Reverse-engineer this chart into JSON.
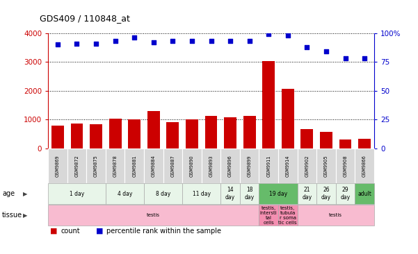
{
  "title": "GDS409 / 110848_at",
  "samples": [
    "GSM9869",
    "GSM9872",
    "GSM9875",
    "GSM9878",
    "GSM9881",
    "GSM9884",
    "GSM9887",
    "GSM9890",
    "GSM9893",
    "GSM9896",
    "GSM9899",
    "GSM9911",
    "GSM9914",
    "GSM9902",
    "GSM9905",
    "GSM9908",
    "GSM9866"
  ],
  "counts": [
    800,
    870,
    850,
    1040,
    1020,
    1300,
    920,
    1020,
    1130,
    1080,
    1140,
    3020,
    2080,
    680,
    570,
    320,
    340
  ],
  "percentiles": [
    90,
    91,
    91,
    93,
    96,
    92,
    93,
    93,
    93,
    93,
    93,
    99,
    98,
    88,
    84,
    78,
    78
  ],
  "bar_color": "#cc0000",
  "dot_color": "#0000cc",
  "ylim_left": [
    0,
    4000
  ],
  "ylim_right": [
    0,
    100
  ],
  "yticks_left": [
    0,
    1000,
    2000,
    3000,
    4000
  ],
  "yticks_right": [
    0,
    25,
    50,
    75,
    100
  ],
  "ytick_right_labels": [
    "0",
    "25",
    "50",
    "75",
    "100%"
  ],
  "age_groups": [
    {
      "label": "1 day",
      "start": 0,
      "end": 3,
      "color": "#e8f5e9"
    },
    {
      "label": "4 day",
      "start": 3,
      "end": 5,
      "color": "#e8f5e9"
    },
    {
      "label": "8 day",
      "start": 5,
      "end": 7,
      "color": "#e8f5e9"
    },
    {
      "label": "11 day",
      "start": 7,
      "end": 9,
      "color": "#e8f5e9"
    },
    {
      "label": "14\nday",
      "start": 9,
      "end": 10,
      "color": "#e8f5e9"
    },
    {
      "label": "18\nday",
      "start": 10,
      "end": 11,
      "color": "#e8f5e9"
    },
    {
      "label": "19 day",
      "start": 11,
      "end": 13,
      "color": "#66bb6a"
    },
    {
      "label": "21\nday",
      "start": 13,
      "end": 14,
      "color": "#e8f5e9"
    },
    {
      "label": "26\nday",
      "start": 14,
      "end": 15,
      "color": "#e8f5e9"
    },
    {
      "label": "29\nday",
      "start": 15,
      "end": 16,
      "color": "#e8f5e9"
    },
    {
      "label": "adult",
      "start": 16,
      "end": 17,
      "color": "#66bb6a"
    }
  ],
  "tissue_groups": [
    {
      "label": "testis",
      "start": 0,
      "end": 11,
      "color": "#f8bbd0"
    },
    {
      "label": "testis,\nintersti\ntal\ncells",
      "start": 11,
      "end": 12,
      "color": "#f48fb1"
    },
    {
      "label": "testis,\ntubula\nr soma\ntic cells",
      "start": 12,
      "end": 13,
      "color": "#f48fb1"
    },
    {
      "label": "testis",
      "start": 13,
      "end": 17,
      "color": "#f8bbd0"
    }
  ],
  "background_color": "#ffffff",
  "left_axis_color": "#cc0000",
  "right_axis_color": "#0000cc"
}
